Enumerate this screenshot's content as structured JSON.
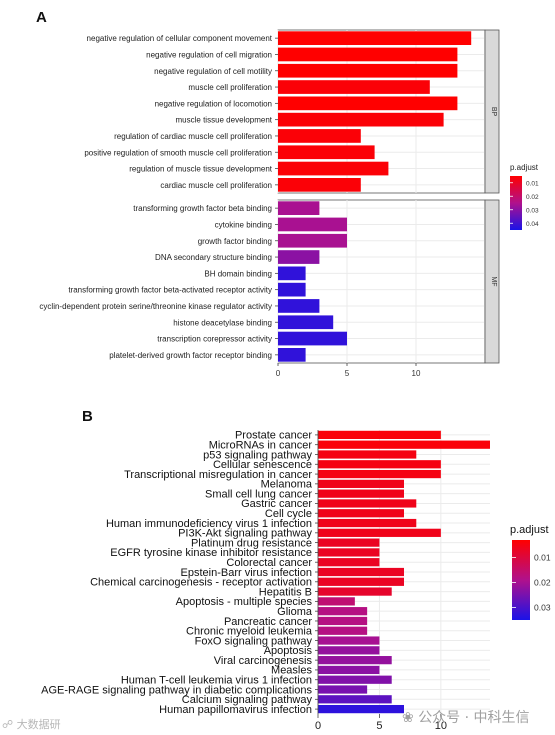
{
  "panel_a_letter": "A",
  "panel_b_letter": "B",
  "watermark_left": "大数据研",
  "watermark_right": "公众号 · 中科生信",
  "colors": {
    "low_p": "#ff0000",
    "high_p": "#1a12e8",
    "strip": "#d9d9d9",
    "grid": "#ebebeb"
  },
  "chart_data": [
    {
      "type": "bar",
      "orientation": "horizontal",
      "panel": "A",
      "legend_title": "p.adjust",
      "legend_ticks": [
        "0.01",
        "0.02",
        "0.03",
        "0.04"
      ],
      "legend_tick_values": [
        0.01,
        0.02,
        0.03,
        0.04
      ],
      "color_range": [
        0.005,
        0.045
      ],
      "xlim": [
        0,
        15
      ],
      "xticks": [
        0,
        5,
        10
      ],
      "grid": true,
      "legend_position": "right",
      "facets": [
        {
          "strip": "BP",
          "categories": [
            "negative regulation of cellular component movement",
            "negative regulation of cell migration",
            "negative regulation of cell motility",
            "muscle cell proliferation",
            "negative regulation of locomotion",
            "muscle tissue development",
            "regulation of cardiac muscle cell proliferation",
            "positive regulation of smooth muscle cell proliferation",
            "regulation of muscle tissue development",
            "cardiac muscle cell proliferation"
          ],
          "values": [
            14,
            13,
            13,
            11,
            13,
            12,
            6,
            7,
            8,
            6
          ],
          "p_adjust": [
            0.005,
            0.005,
            0.005,
            0.006,
            0.005,
            0.006,
            0.006,
            0.006,
            0.006,
            0.006
          ]
        },
        {
          "strip": "MF",
          "categories": [
            "transforming growth factor beta binding",
            "cytokine binding",
            "growth factor binding",
            "DNA secondary structure binding",
            "BH domain binding",
            "transforming growth factor beta-activated receptor activity",
            "cyclin-dependent protein serine/threonine kinase regulator activity",
            "histone deacetylase binding",
            "transcription corepressor activity",
            "platelet-derived growth factor receptor binding"
          ],
          "values": [
            3,
            5,
            5,
            3,
            2,
            2,
            3,
            4,
            5,
            2
          ],
          "p_adjust": [
            0.026,
            0.026,
            0.026,
            0.03,
            0.042,
            0.042,
            0.042,
            0.042,
            0.042,
            0.042
          ]
        }
      ]
    },
    {
      "type": "bar",
      "orientation": "horizontal",
      "panel": "B",
      "legend_title": "p.adjust",
      "legend_ticks": [
        "0.01",
        "0.02",
        "0.03"
      ],
      "legend_tick_values": [
        0.01,
        0.02,
        0.03
      ],
      "color_range": [
        0.003,
        0.035
      ],
      "xlim": [
        0,
        14
      ],
      "xticks": [
        0,
        5,
        10
      ],
      "grid": true,
      "legend_position": "right",
      "categories": [
        "Prostate cancer",
        "MicroRNAs in cancer",
        "p53 signaling pathway",
        "Cellular senescence",
        "Transcriptional misregulation in cancer",
        "Melanoma",
        "Small cell lung cancer",
        "Gastric cancer",
        "Cell cycle",
        "Human immunodeficiency virus 1 infection",
        "PI3K-Akt signaling pathway",
        "Platinum drug resistance",
        "EGFR tyrosine kinase inhibitor resistance",
        "Colorectal cancer",
        "Epstein-Barr virus infection",
        "Chemical carcinogenesis - receptor activation",
        "Hepatitis B",
        "Apoptosis - multiple species",
        "Glioma",
        "Pancreatic cancer",
        "Chronic myeloid leukemia",
        "FoxO signaling pathway",
        "Apoptosis",
        "Viral carcinogenesis",
        "Measles",
        "Human T-cell leukemia virus 1 infection",
        "AGE-RAGE signaling pathway in diabetic complications",
        "Calcium signaling pathway",
        "Human papillomavirus infection"
      ],
      "values": [
        10,
        14,
        8,
        10,
        10,
        7,
        7,
        8,
        7,
        8,
        10,
        5,
        5,
        5,
        7,
        7,
        6,
        3,
        4,
        4,
        4,
        5,
        5,
        6,
        5,
        6,
        4,
        6,
        7
      ],
      "p_adjust": [
        0.004,
        0.004,
        0.005,
        0.005,
        0.005,
        0.006,
        0.006,
        0.006,
        0.006,
        0.006,
        0.006,
        0.007,
        0.007,
        0.007,
        0.007,
        0.007,
        0.008,
        0.016,
        0.018,
        0.018,
        0.018,
        0.02,
        0.022,
        0.022,
        0.023,
        0.024,
        0.025,
        0.028,
        0.033
      ]
    }
  ]
}
